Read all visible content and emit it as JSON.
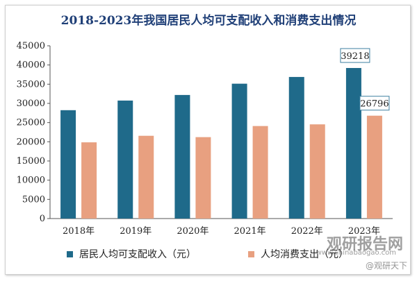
{
  "chart_data": {
    "type": "bar",
    "title": "2018-2023年我国居民人均可支配收入和消费支出情况",
    "categories": [
      "2018年",
      "2019年",
      "2020年",
      "2021年",
      "2022年",
      "2023年"
    ],
    "series": [
      {
        "name": "居民人均可支配收入（元）",
        "color": "#1f6a8a",
        "values": [
          28228,
          30733,
          32189,
          35128,
          36883,
          39218
        ]
      },
      {
        "name": "人均消费支出（元）",
        "color": "#e8a080",
        "values": [
          19853,
          21559,
          21210,
          24100,
          24538,
          26796
        ]
      }
    ],
    "ylim": [
      0,
      45000
    ],
    "yticks": [
      0,
      5000,
      10000,
      15000,
      20000,
      25000,
      30000,
      35000,
      40000,
      45000
    ],
    "annotations": [
      "39218",
      "26796"
    ],
    "grid": false,
    "legend": "bottom"
  },
  "watermark": {
    "brand": "观研报告网",
    "domain": "www.chinabaogao.com",
    "weibo": "@观研天下"
  }
}
